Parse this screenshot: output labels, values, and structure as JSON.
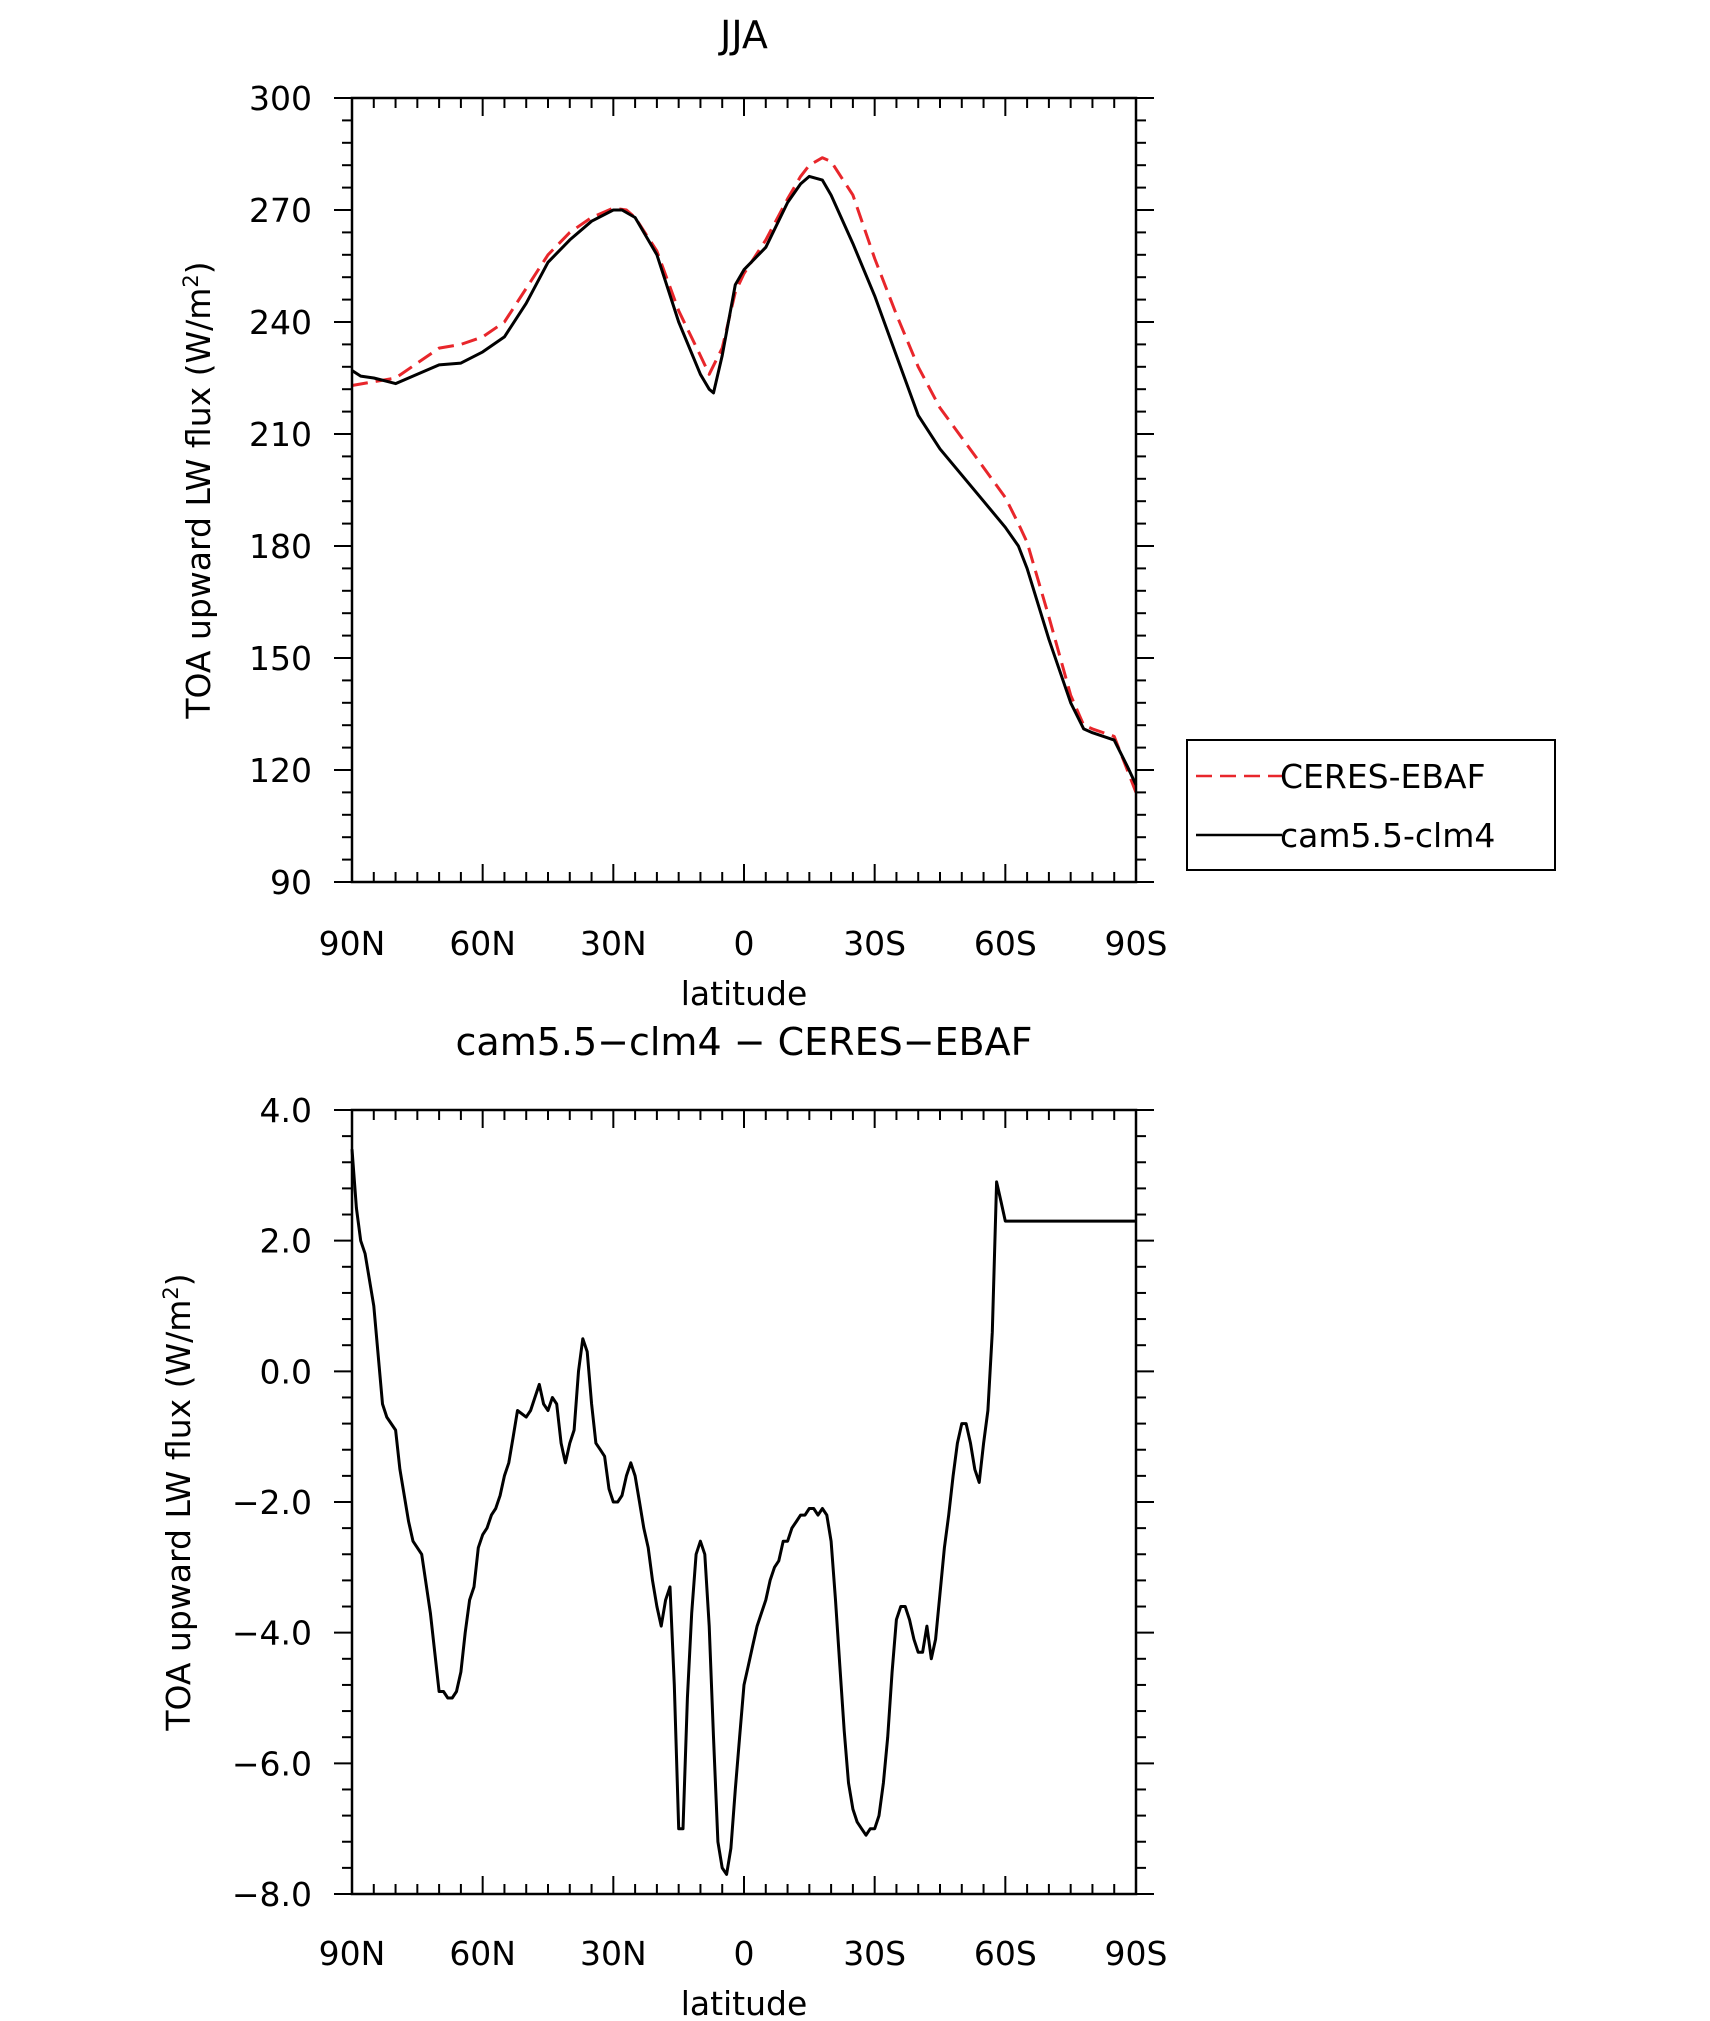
{
  "colors": {
    "obs": "#e8262b",
    "model": "#000000"
  },
  "chart_data": [
    {
      "type": "line",
      "title": "JJA",
      "xlabel": "latitude",
      "ylabel": "TOA upward LW flux (W/m²)",
      "ylabel_main": "TOA upward LW flux (W/m",
      "ylabel_sup": "2",
      "ylabel_tail": ")",
      "x_ticks": [
        {
          "value": 90,
          "label": "90N"
        },
        {
          "value": 60,
          "label": "60N"
        },
        {
          "value": 30,
          "label": "30N"
        },
        {
          "value": 0,
          "label": "0"
        },
        {
          "value": -30,
          "label": "30S"
        },
        {
          "value": -60,
          "label": "60S"
        },
        {
          "value": -90,
          "label": "90S"
        }
      ],
      "y_ticks": [
        {
          "value": 90,
          "label": "90"
        },
        {
          "value": 120,
          "label": "120"
        },
        {
          "value": 150,
          "label": "150"
        },
        {
          "value": 180,
          "label": "180"
        },
        {
          "value": 210,
          "label": "210"
        },
        {
          "value": 240,
          "label": "240"
        },
        {
          "value": 270,
          "label": "270"
        },
        {
          "value": 300,
          "label": "300"
        }
      ],
      "xlim": [
        90,
        -90
      ],
      "ylim": [
        90,
        300
      ],
      "grid": false,
      "legend": "outside-right",
      "series": [
        {
          "name": "CERES-EBAF",
          "style": "dashed",
          "x": [
            90,
            85,
            80,
            75,
            70,
            65,
            60,
            55,
            50,
            45,
            40,
            35,
            30,
            27,
            25,
            20,
            15,
            10,
            8,
            5,
            2,
            0,
            -5,
            -10,
            -13,
            -15,
            -18,
            -20,
            -25,
            -30,
            -35,
            -40,
            -45,
            -50,
            -55,
            -60,
            -63,
            -65,
            -70,
            -75,
            -78,
            -80,
            -85,
            -88,
            -90
          ],
          "y": [
            223,
            224,
            225,
            229,
            233,
            234,
            236,
            240,
            249,
            258,
            264,
            268,
            270.5,
            270,
            268,
            259,
            243,
            231,
            226,
            233,
            248,
            253,
            262,
            273,
            279,
            282,
            284,
            283,
            274,
            257,
            242,
            228,
            217,
            209,
            201,
            193,
            186,
            181,
            161,
            140,
            132,
            131,
            129,
            120,
            114
          ]
        },
        {
          "name": "cam5.5-clm4",
          "style": "solid",
          "x": [
            90,
            88,
            85,
            80,
            75,
            70,
            65,
            60,
            55,
            50,
            45,
            40,
            35,
            30,
            28,
            25,
            20,
            15,
            10,
            8,
            7,
            5,
            2,
            0,
            -5,
            -10,
            -13,
            -15,
            -18,
            -20,
            -25,
            -30,
            -35,
            -40,
            -45,
            -50,
            -55,
            -60,
            -63,
            -65,
            -70,
            -75,
            -78,
            -80,
            -85,
            -88,
            -90
          ],
          "y": [
            227,
            225.5,
            225,
            223.5,
            226,
            228.5,
            229,
            232,
            236,
            245,
            256,
            262,
            267,
            270,
            270,
            268,
            258,
            240,
            226,
            222,
            221,
            231,
            250,
            254,
            260,
            272,
            277,
            279,
            278,
            274,
            261,
            247,
            231,
            215,
            206,
            199,
            192,
            185,
            180,
            174,
            155,
            138,
            131,
            130,
            128,
            121,
            116
          ]
        }
      ]
    },
    {
      "type": "line",
      "title": "cam5.5−clm4 − CERES−EBAF",
      "xlabel": "latitude",
      "ylabel": "TOA upward LW flux (W/m²)",
      "ylabel_main": "TOA upward LW flux (W/m",
      "ylabel_sup": "2",
      "ylabel_tail": ")",
      "x_ticks": [
        {
          "value": 90,
          "label": "90N"
        },
        {
          "value": 60,
          "label": "60N"
        },
        {
          "value": 30,
          "label": "30N"
        },
        {
          "value": 0,
          "label": "0"
        },
        {
          "value": -30,
          "label": "30S"
        },
        {
          "value": -60,
          "label": "60S"
        },
        {
          "value": -90,
          "label": "90S"
        }
      ],
      "y_ticks": [
        {
          "value": -8.0,
          "label": "−8.0"
        },
        {
          "value": -6.0,
          "label": "−6.0"
        },
        {
          "value": -4.0,
          "label": "−4.0"
        },
        {
          "value": -2.0,
          "label": "−2.0"
        },
        {
          "value": 0.0,
          "label": "0.0"
        },
        {
          "value": 2.0,
          "label": "2.0"
        },
        {
          "value": 4.0,
          "label": "4.0"
        }
      ],
      "xlim": [
        90,
        -90
      ],
      "ylim": [
        -8.0,
        4.0
      ],
      "grid": false,
      "series": [
        {
          "name": "cam5.5-clm4 - CERES-EBAF",
          "style": "solid",
          "x": [
            90,
            89,
            88,
            87,
            85,
            83,
            82,
            80,
            79,
            77,
            76,
            74,
            72,
            70,
            69,
            68,
            67,
            66,
            65,
            64,
            63,
            62,
            61,
            60,
            59,
            58,
            57,
            56,
            55,
            54,
            53,
            52,
            50,
            49,
            48,
            47,
            46,
            45,
            44,
            43,
            42,
            41,
            40,
            39,
            38,
            37,
            36,
            35,
            34,
            33,
            32,
            31,
            30,
            29,
            28,
            27,
            26,
            25,
            24,
            23,
            22,
            21,
            20,
            19,
            18,
            17,
            16,
            15,
            14,
            13,
            12,
            11,
            10,
            9,
            8,
            7,
            6,
            5,
            4,
            3,
            2,
            1,
            0,
            -1,
            -2,
            -3,
            -4,
            -5,
            -6,
            -7,
            -8,
            -9,
            -10,
            -11,
            -12,
            -13,
            -14,
            -15,
            -16,
            -17,
            -18,
            -19,
            -20,
            -21,
            -22,
            -23,
            -24,
            -25,
            -26,
            -27,
            -28,
            -29,
            -30,
            -31,
            -32,
            -33,
            -34,
            -35,
            -36,
            -37,
            -38,
            -39,
            -40,
            -41,
            -42,
            -43,
            -44,
            -45,
            -46,
            -47,
            -48,
            -49,
            -50,
            -51,
            -52,
            -53,
            -54,
            -55,
            -56,
            -57,
            -58,
            -59,
            -60,
            -61,
            -62,
            -63,
            -64,
            -65,
            -66,
            -67,
            -68,
            -69,
            -70,
            -71,
            -72,
            -73,
            -74,
            -75,
            -76,
            -77,
            -78,
            -79,
            -80,
            -81,
            -82,
            -83,
            -84,
            -85,
            -86,
            -87,
            -88,
            -89,
            -90
          ],
          "y": [
            3.4,
            2.5,
            2.0,
            1.8,
            1.0,
            -0.5,
            -0.7,
            -0.9,
            -1.5,
            -2.3,
            -2.6,
            -2.8,
            -3.7,
            -4.9,
            -4.9,
            -5.0,
            -5.0,
            -4.9,
            -4.6,
            -4.0,
            -3.5,
            -3.3,
            -2.7,
            -2.5,
            -2.4,
            -2.2,
            -2.1,
            -1.9,
            -1.6,
            -1.4,
            -1.0,
            -0.6,
            -0.7,
            -0.6,
            -0.4,
            -0.2,
            -0.5,
            -0.6,
            -0.4,
            -0.5,
            -1.1,
            -1.4,
            -1.1,
            -0.9,
            0.0,
            0.5,
            0.3,
            -0.5,
            -1.1,
            -1.2,
            -1.3,
            -1.8,
            -2.0,
            -2.0,
            -1.9,
            -1.6,
            -1.4,
            -1.6,
            -2.0,
            -2.4,
            -2.7,
            -3.2,
            -3.6,
            -3.9,
            -3.5,
            -3.3,
            -4.8,
            -7.0,
            -7.0,
            -5.0,
            -3.7,
            -2.8,
            -2.6,
            -2.8,
            -3.9,
            -5.6,
            -7.2,
            -7.6,
            -7.7,
            -7.3,
            -6.4,
            -5.6,
            -4.8,
            -4.5,
            -4.2,
            -3.9,
            -3.7,
            -3.5,
            -3.2,
            -3.0,
            -2.9,
            -2.6,
            -2.6,
            -2.4,
            -2.3,
            -2.2,
            -2.2,
            -2.1,
            -2.1,
            -2.2,
            -2.1,
            -2.2,
            -2.6,
            -3.5,
            -4.5,
            -5.5,
            -6.3,
            -6.7,
            -6.9,
            -7.0,
            -7.1,
            -7.0,
            -7.0,
            -6.8,
            -6.3,
            -5.6,
            -4.6,
            -3.8,
            -3.6,
            -3.6,
            -3.8,
            -4.1,
            -4.3,
            -4.3,
            -3.9,
            -4.4,
            -4.1,
            -3.4,
            -2.7,
            -2.2,
            -1.6,
            -1.1,
            -0.8,
            -0.8,
            -1.1,
            -1.5,
            -1.7,
            -1.1,
            -0.6,
            0.6,
            2.9,
            2.6,
            2.3,
            2.3,
            2.3,
            2.3,
            2.3,
            2.3,
            2.3,
            2.3,
            2.3,
            2.3,
            2.3,
            2.3,
            2.3,
            2.3,
            2.3,
            2.3,
            2.3,
            2.3,
            2.3,
            2.3,
            2.3,
            2.3,
            2.3,
            2.3,
            2.3,
            2.3,
            2.3,
            2.3,
            2.3,
            2.3,
            2.3
          ]
        }
      ]
    }
  ]
}
